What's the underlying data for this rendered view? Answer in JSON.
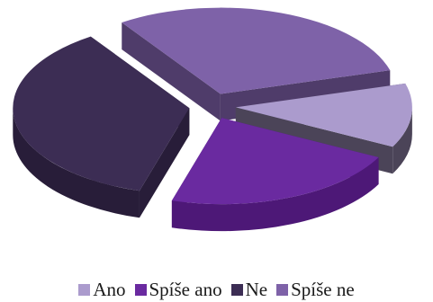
{
  "chart_data": {
    "type": "pie",
    "style": "3d-exploded",
    "categories": [
      "Ano",
      "Spíše ano",
      "Ne",
      "Spíše ne"
    ],
    "values": [
      12,
      22,
      36,
      30
    ],
    "colors": [
      "#ab9bcd",
      "#6a2aa0",
      "#3c2d54",
      "#7e62a8"
    ],
    "side_colors": [
      "#4b4458",
      "#4d1877",
      "#281d39",
      "#4f3c6a"
    ],
    "legend_position": "bottom",
    "title": "",
    "start_angle_deg": -16,
    "direction": "clockwise"
  },
  "legend": {
    "items": [
      {
        "label": "Ano",
        "color": "#ab9bcd"
      },
      {
        "label": "Spíše ano",
        "color": "#6a2aa0"
      },
      {
        "label": "Ne",
        "color": "#3c2d54"
      },
      {
        "label": "Spíše ne",
        "color": "#7e62a8"
      }
    ]
  }
}
